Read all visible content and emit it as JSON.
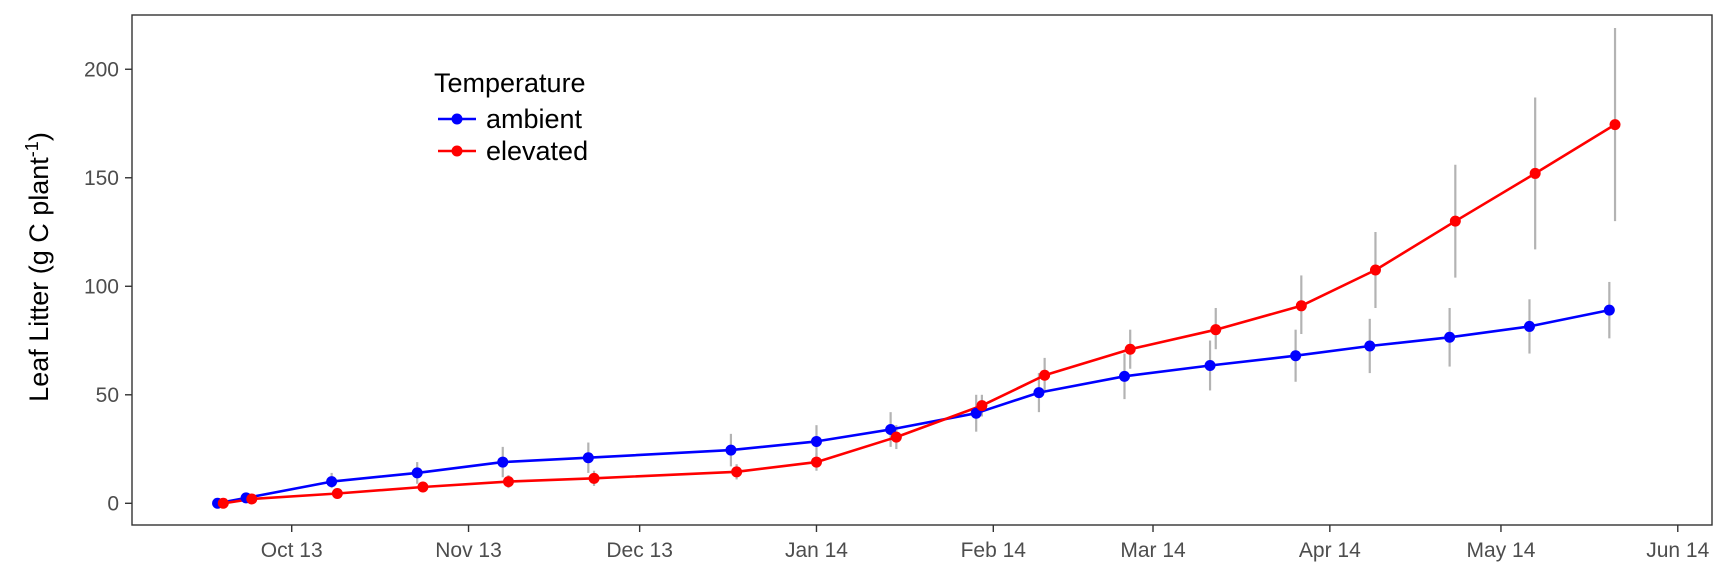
{
  "chart_data": {
    "type": "line",
    "title": "",
    "xlabel": "",
    "ylabel": {
      "main": "Leaf Litter (g C plant",
      "superscript": "-1",
      "close": ")"
    },
    "x_ticks": [
      "Oct 13",
      "Nov 13",
      "Dec 13",
      "Jan 14",
      "Feb 14",
      "Mar 14",
      "Apr 14",
      "May 14",
      "Jun 14"
    ],
    "x_tick_dates": [
      "2013-10-01",
      "2013-11-01",
      "2013-12-01",
      "2014-01-01",
      "2014-02-01",
      "2014-03-01",
      "2014-04-01",
      "2014-05-01",
      "2014-06-01"
    ],
    "xlim": [
      "2013-09-03",
      "2014-06-07"
    ],
    "ylim": [
      -10,
      225
    ],
    "y_ticks": [
      0,
      50,
      100,
      150,
      200
    ],
    "y_tick_labels": [
      "0",
      "50",
      "100",
      "150",
      "200"
    ],
    "grid": false,
    "legend": {
      "title": "Temperature",
      "position": "top-left inside"
    },
    "error_bar_color": "#b3b3b3",
    "series": [
      {
        "name": "ambient",
        "color": "#0000ff",
        "points": [
          {
            "x": "2013-09-18",
            "y": 0,
            "lo": 0,
            "hi": 0
          },
          {
            "x": "2013-09-23",
            "y": 2.5,
            "lo": 1,
            "hi": 4
          },
          {
            "x": "2013-10-08",
            "y": 10,
            "lo": 7,
            "hi": 14
          },
          {
            "x": "2013-10-23",
            "y": 14,
            "lo": 9,
            "hi": 19
          },
          {
            "x": "2013-11-07",
            "y": 19,
            "lo": 12,
            "hi": 26
          },
          {
            "x": "2013-11-22",
            "y": 21,
            "lo": 14,
            "hi": 28
          },
          {
            "x": "2013-12-17",
            "y": 24.5,
            "lo": 17,
            "hi": 32
          },
          {
            "x": "2014-01-01",
            "y": 28.5,
            "lo": 21,
            "hi": 36
          },
          {
            "x": "2014-01-14",
            "y": 34,
            "lo": 26,
            "hi": 42
          },
          {
            "x": "2014-01-29",
            "y": 41.5,
            "lo": 33,
            "hi": 50
          },
          {
            "x": "2014-02-09",
            "y": 51,
            "lo": 42,
            "hi": 60
          },
          {
            "x": "2014-02-24",
            "y": 58.5,
            "lo": 48,
            "hi": 69
          },
          {
            "x": "2014-03-11",
            "y": 63.5,
            "lo": 52,
            "hi": 75
          },
          {
            "x": "2014-03-26",
            "y": 68,
            "lo": 56,
            "hi": 80
          },
          {
            "x": "2014-04-08",
            "y": 72.5,
            "lo": 60,
            "hi": 85
          },
          {
            "x": "2014-04-22",
            "y": 76.5,
            "lo": 63,
            "hi": 90
          },
          {
            "x": "2014-05-06",
            "y": 81.5,
            "lo": 69,
            "hi": 94
          },
          {
            "x": "2014-05-20",
            "y": 89,
            "lo": 76,
            "hi": 102
          }
        ]
      },
      {
        "name": "elevated",
        "color": "#ff0000",
        "points": [
          {
            "x": "2013-09-19",
            "y": 0,
            "lo": 0,
            "hi": 0
          },
          {
            "x": "2013-09-24",
            "y": 2,
            "lo": 1,
            "hi": 3
          },
          {
            "x": "2013-10-09",
            "y": 4.5,
            "lo": 3,
            "hi": 6
          },
          {
            "x": "2013-10-24",
            "y": 7.5,
            "lo": 5,
            "hi": 10
          },
          {
            "x": "2013-11-08",
            "y": 10,
            "lo": 7,
            "hi": 13
          },
          {
            "x": "2013-11-23",
            "y": 11.5,
            "lo": 8,
            "hi": 15
          },
          {
            "x": "2013-12-18",
            "y": 14.5,
            "lo": 11,
            "hi": 18
          },
          {
            "x": "2014-01-01",
            "y": 19,
            "lo": 15,
            "hi": 23
          },
          {
            "x": "2014-01-15",
            "y": 30.5,
            "lo": 25,
            "hi": 36
          },
          {
            "x": "2014-01-30",
            "y": 45,
            "lo": 40,
            "hi": 50
          },
          {
            "x": "2014-02-10",
            "y": 59,
            "lo": 52,
            "hi": 67
          },
          {
            "x": "2014-02-25",
            "y": 71,
            "lo": 62,
            "hi": 80
          },
          {
            "x": "2014-03-12",
            "y": 80,
            "lo": 71,
            "hi": 90
          },
          {
            "x": "2014-03-27",
            "y": 91,
            "lo": 78,
            "hi": 105
          },
          {
            "x": "2014-04-09",
            "y": 107.5,
            "lo": 90,
            "hi": 125
          },
          {
            "x": "2014-04-23",
            "y": 130,
            "lo": 104,
            "hi": 156
          },
          {
            "x": "2014-05-07",
            "y": 152,
            "lo": 117,
            "hi": 187
          },
          {
            "x": "2014-05-21",
            "y": 174.5,
            "lo": 130,
            "hi": 219
          }
        ]
      }
    ]
  }
}
